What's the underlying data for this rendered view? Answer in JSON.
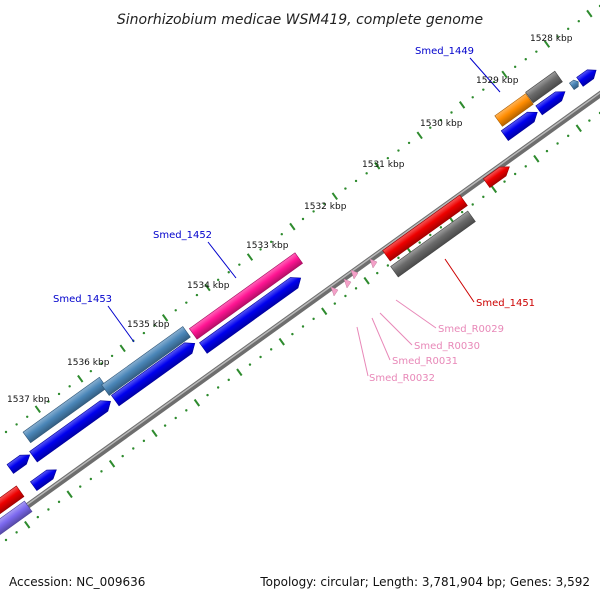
{
  "title": "Sinorhizobium medicae WSM419, complete genome",
  "footer": {
    "accession": "Accession: NC_009636",
    "summary": "Topology: circular; Length: 3,781,904 bp; Genes: 3,592"
  },
  "colors": {
    "backbone": "#8a8a8a",
    "tick_dot": "#2e8b2e",
    "forward_cds": "#0000ee",
    "steelblue_cds": "#4a86b8",
    "pink_cds": "#ff1493",
    "orange_cds": "#ff8c00",
    "gray_cds": "#6a6a6a",
    "red_cds": "#ee0000",
    "purple_cds": "#7b68ee",
    "trna": "#f4a0c8",
    "label_blue": "#0000cc",
    "label_red": "#cc0000",
    "label_pink": "#e888b8"
  },
  "kbp_ticks": [
    "1528 kbp",
    "1529 kbp",
    "1530 kbp",
    "1531 kbp",
    "1532 kbp",
    "1533 kbp",
    "1534 kbp",
    "1535 kbp",
    "1536 kbp",
    "1537 kbp"
  ],
  "gene_labels": [
    {
      "id": "smed-1449",
      "text": "Smed_1449",
      "color": "blue"
    },
    {
      "id": "smed-1452",
      "text": "Smed_1452",
      "color": "blue"
    },
    {
      "id": "smed-1453",
      "text": "Smed_1453",
      "color": "blue"
    },
    {
      "id": "smed-1451",
      "text": "Smed_1451",
      "color": "red"
    },
    {
      "id": "smed-r0029",
      "text": "Smed_R0029",
      "color": "pink"
    },
    {
      "id": "smed-r0030",
      "text": "Smed_R0030",
      "color": "pink"
    },
    {
      "id": "smed-r0031",
      "text": "Smed_R0031",
      "color": "pink"
    },
    {
      "id": "smed-r0032",
      "text": "Smed_R0032",
      "color": "pink"
    }
  ]
}
